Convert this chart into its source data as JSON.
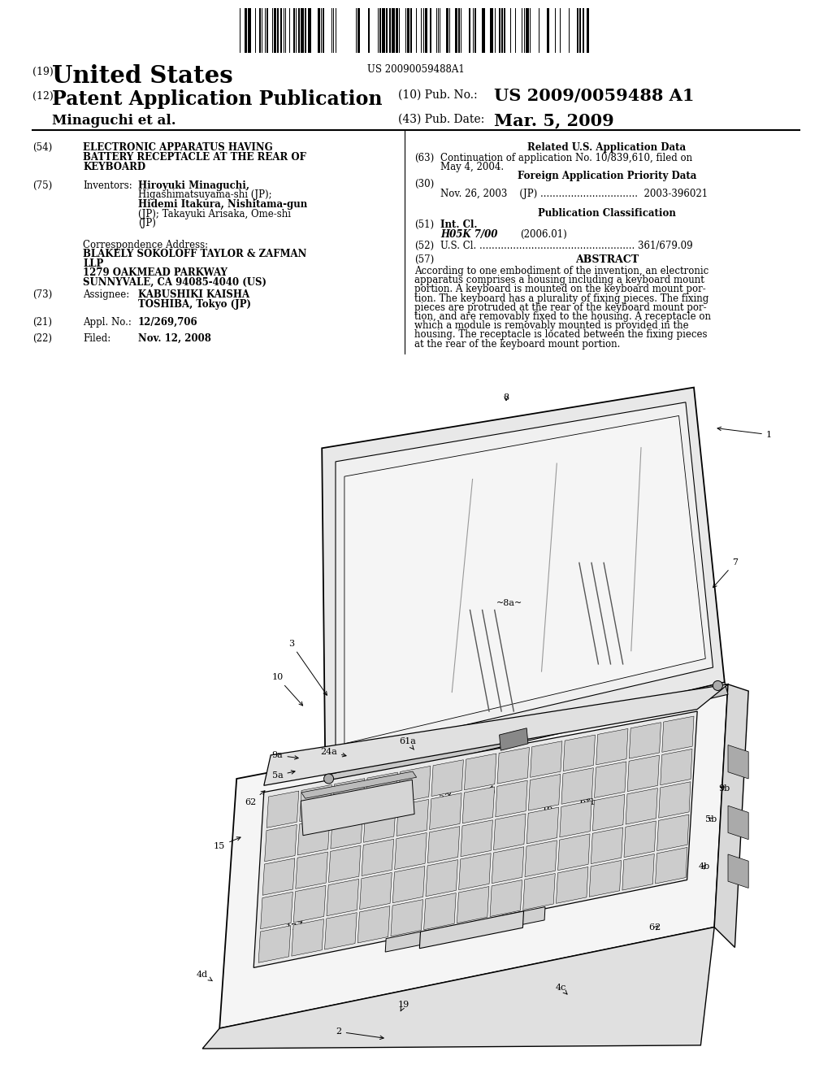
{
  "background_color": "#ffffff",
  "barcode_text": "US 20090059488A1",
  "header": {
    "title_19_prefix": "(19)",
    "title_19_text": "United States",
    "title_12_prefix": "(12)",
    "title_12_text": "Patent Application Publication",
    "pub_no_prefix": "(10) Pub. No.:",
    "pub_no_value": "US 2009/0059488 A1",
    "pub_date_prefix": "(43) Pub. Date:",
    "pub_date_value": "Mar. 5, 2009",
    "author": "Minaguchi et al."
  },
  "left_col": {
    "f54_num": "(54)",
    "f54_lines": [
      "ELECTRONIC APPARATUS HAVING",
      "BATTERY RECEPTACLE AT THE REAR OF",
      "KEYBOARD"
    ],
    "f75_num": "(75)",
    "f75_key": "Inventors:",
    "f75_lines": [
      "Hiroyuki Minaguchi,",
      "Higashimatsuyama-shi (JP);",
      "Hidemi Itakura, Nishitama-gun",
      "(JP); Takayuki Arisaka, Ome-shi",
      "(JP)"
    ],
    "f75_bold": [
      0,
      2
    ],
    "corr_label": "Correspondence Address:",
    "corr_lines": [
      "BLAKELY SOKOLOFF TAYLOR & ZAFMAN",
      "LLP",
      "1279 OAKMEAD PARKWAY",
      "SUNNYVALE, CA 94085-4040 (US)"
    ],
    "f73_num": "(73)",
    "f73_key": "Assignee:",
    "f73_lines": [
      "KABUSHIKI KAISHA",
      "TOSHIBA, Tokyo (JP)"
    ],
    "f21_num": "(21)",
    "f21_key": "Appl. No.:",
    "f21_val": "12/269,706",
    "f22_num": "(22)",
    "f22_key": "Filed:",
    "f22_val": "Nov. 12, 2008"
  },
  "right_col": {
    "related_hdr": "Related U.S. Application Data",
    "f63_num": "(63)",
    "f63_lines": [
      "Continuation of application No. 10/839,610, filed on",
      "May 4, 2004."
    ],
    "f30_num": "(30)",
    "foreign_hdr": "Foreign Application Priority Data",
    "foreign_line": "Nov. 26, 2003    (JP) ................................  2003-396021",
    "pubcls_hdr": "Publication Classification",
    "f51_num": "(51)",
    "f51_key": "Int. Cl.",
    "f51_val": "H05K 7/00",
    "f51_year": "(2006.01)",
    "f52_num": "(52)",
    "f52_line": "U.S. Cl. ................................................... 361/679.09",
    "f57_num": "(57)",
    "abstract_hdr": "ABSTRACT",
    "abstract_lines": [
      "According to one embodiment of the invention, an electronic",
      "apparatus comprises a housing including a keyboard mount",
      "portion. A keyboard is mounted on the keyboard mount por-",
      "tion. The keyboard has a plurality of fixing pieces. The fixing",
      "pieces are protruded at the rear of the keyboard mount por-",
      "tion, and are removably fixed to the housing. A receptacle on",
      "which a module is removably mounted is provided in the",
      "housing. The receptacle is located between the fixing pieces",
      "at the rear of the keyboard mount portion."
    ]
  }
}
